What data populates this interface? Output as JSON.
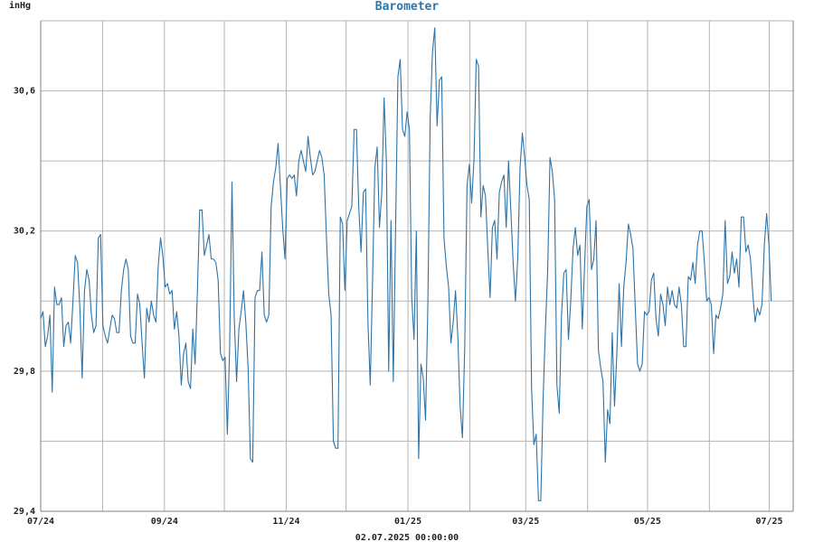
{
  "colors": {
    "background": "#ffffff",
    "grid": "#b3b3b3",
    "axis": "#7f7f7f",
    "series": "#2e74a8",
    "title": "#2e74a8",
    "text": "#222222"
  },
  "chart_data": {
    "type": "line",
    "title": "Barometer",
    "ylabel": "inHg",
    "xlabel": "02.07.2025 00:00:00",
    "ylim": [
      29.4,
      30.8
    ],
    "y_ticks": [
      29.4,
      29.8,
      30.2,
      30.6
    ],
    "y_tick_labels": [
      "29,4",
      "29,8",
      "30,2",
      "30,6"
    ],
    "y_grid_step": 0.2,
    "x_ticks": [
      "07/24",
      "09/24",
      "11/24",
      "01/25",
      "03/25",
      "05/25",
      "07/25"
    ],
    "x_grid_months": [
      "07/24",
      "08/24",
      "09/24",
      "10/24",
      "11/24",
      "12/24",
      "01/25",
      "02/25",
      "03/25",
      "04/25",
      "05/25",
      "06/25",
      "07/25"
    ],
    "grid": true,
    "series": [
      {
        "values": [
          29.95,
          29.97,
          29.87,
          29.9,
          29.96,
          29.74,
          30.04,
          29.99,
          29.99,
          30.01,
          29.87,
          29.93,
          29.94,
          29.88,
          30.0,
          30.13,
          30.11,
          29.98,
          29.78,
          30.03,
          30.09,
          30.06,
          29.96,
          29.91,
          29.93,
          30.18,
          30.19,
          29.93,
          29.9,
          29.88,
          29.92,
          29.96,
          29.95,
          29.91,
          29.91,
          30.03,
          30.09,
          30.12,
          30.09,
          29.9,
          29.88,
          29.88,
          30.02,
          29.99,
          29.88,
          29.78,
          29.98,
          29.94,
          30.0,
          29.96,
          29.94,
          30.1,
          30.18,
          30.13,
          30.04,
          30.05,
          30.02,
          30.03,
          29.92,
          29.97,
          29.9,
          29.76,
          29.85,
          29.88,
          29.77,
          29.75,
          29.92,
          29.82,
          30.03,
          30.26,
          30.26,
          30.13,
          30.16,
          30.19,
          30.12,
          30.12,
          30.11,
          30.06,
          29.85,
          29.83,
          29.84,
          29.62,
          29.87,
          30.34,
          29.95,
          29.77,
          29.92,
          29.97,
          30.03,
          29.94,
          29.81,
          29.55,
          29.54,
          30.01,
          30.03,
          30.03,
          30.14,
          29.96,
          29.94,
          29.96,
          30.27,
          30.34,
          30.38,
          30.45,
          30.33,
          30.21,
          30.12,
          30.35,
          30.36,
          30.35,
          30.36,
          30.3,
          30.4,
          30.43,
          30.4,
          30.37,
          30.47,
          30.41,
          30.36,
          30.37,
          30.4,
          30.43,
          30.41,
          30.36,
          30.18,
          30.02,
          29.96,
          29.6,
          29.58,
          29.58,
          30.24,
          30.22,
          30.03,
          30.23,
          30.25,
          30.27,
          30.49,
          30.49,
          30.27,
          30.14,
          30.31,
          30.32,
          29.94,
          29.76,
          30.06,
          30.38,
          30.44,
          30.21,
          30.31,
          30.58,
          30.4,
          29.8,
          30.23,
          29.77,
          30.21,
          30.64,
          30.69,
          30.49,
          30.47,
          30.54,
          30.49,
          30.01,
          29.89,
          30.2,
          29.55,
          29.82,
          29.78,
          29.66,
          29.99,
          30.52,
          30.71,
          30.78,
          30.5,
          30.63,
          30.64,
          30.18,
          30.1,
          30.04,
          29.88,
          29.94,
          30.03,
          29.9,
          29.7,
          29.61,
          29.87,
          30.33,
          30.39,
          30.28,
          30.4,
          30.69,
          30.67,
          30.24,
          30.33,
          30.3,
          30.15,
          30.01,
          30.21,
          30.23,
          30.12,
          30.31,
          30.34,
          30.36,
          30.21,
          30.4,
          30.26,
          30.11,
          30.0,
          30.12,
          30.38,
          30.48,
          30.41,
          30.33,
          30.29,
          29.75,
          29.59,
          29.62,
          29.43,
          29.43,
          29.72,
          29.92,
          30.09,
          30.41,
          30.37,
          30.29,
          29.76,
          29.68,
          29.96,
          30.08,
          30.09,
          29.89,
          30.0,
          30.15,
          30.21,
          30.13,
          30.16,
          29.92,
          30.1,
          30.27,
          30.29,
          30.09,
          30.12,
          30.23,
          29.86,
          29.81,
          29.77,
          29.54,
          29.69,
          29.65,
          29.91,
          29.7,
          29.85,
          30.05,
          29.87,
          30.04,
          30.11,
          30.22,
          30.19,
          30.15,
          29.98,
          29.82,
          29.8,
          29.82,
          29.97,
          29.96,
          29.97,
          30.06,
          30.08,
          29.95,
          29.9,
          30.02,
          29.99,
          29.93,
          30.04,
          29.99,
          30.03,
          29.99,
          29.98,
          30.04,
          29.99,
          29.87,
          29.87,
          30.07,
          30.06,
          30.11,
          30.05,
          30.16,
          30.2,
          30.2,
          30.11,
          30.0,
          30.01,
          29.99,
          29.85,
          29.96,
          29.95,
          29.98,
          30.02,
          30.23,
          30.05,
          30.07,
          30.14,
          30.08,
          30.12,
          30.04,
          30.24,
          30.24,
          30.14,
          30.16,
          30.12,
          30.02,
          29.94,
          29.98,
          29.96,
          29.99,
          30.16,
          30.25,
          30.16,
          30.0
        ],
        "x_start": "2024-07-01",
        "x_end": "2025-07-02"
      }
    ]
  }
}
